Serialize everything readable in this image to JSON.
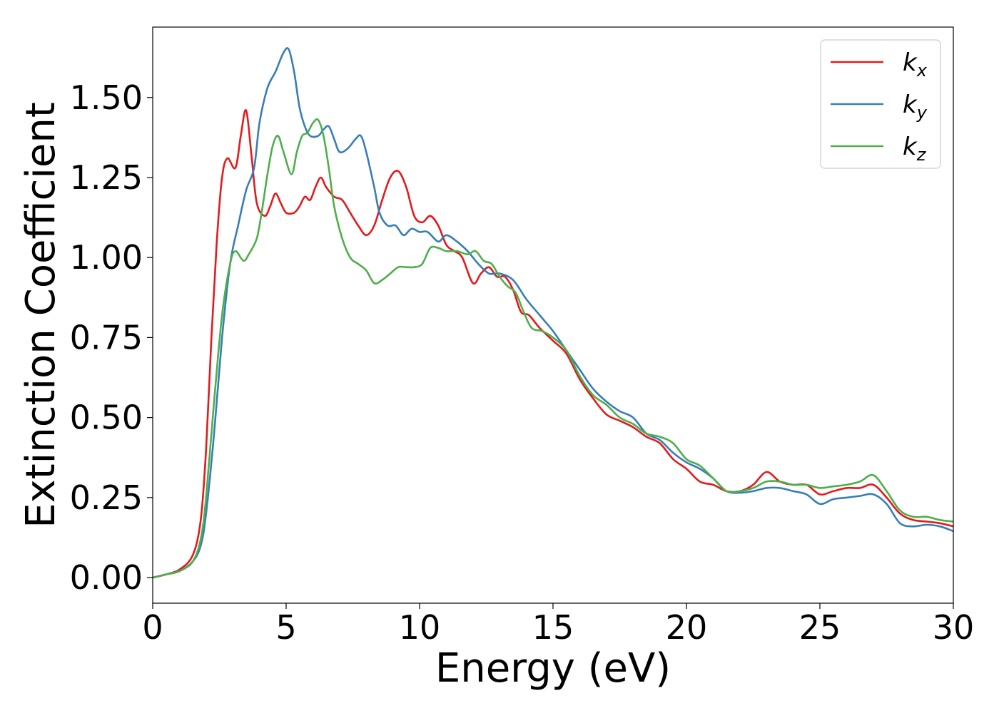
{
  "chart_data": {
    "type": "line",
    "title": "",
    "xlabel": "Energy (eV)",
    "ylabel": "Extinction Coefficient",
    "xlim": [
      0,
      30
    ],
    "ylim": [
      -0.08,
      1.72
    ],
    "xticks": [
      0,
      5,
      10,
      15,
      20,
      25,
      30
    ],
    "xtick_labels": [
      "0",
      "5",
      "10",
      "15",
      "20",
      "25",
      "30"
    ],
    "yticks": [
      0.0,
      0.25,
      0.5,
      0.75,
      1.0,
      1.25,
      1.5
    ],
    "ytick_labels": [
      "0.00",
      "0.25",
      "0.50",
      "0.75",
      "1.00",
      "1.25",
      "1.50"
    ],
    "grid": false,
    "legend_position": "top-right",
    "series": [
      {
        "name": "k_x",
        "label_main": "k",
        "label_sub": "x",
        "color": "#e41a1c",
        "points": [
          [
            0,
            0
          ],
          [
            0.5,
            0.01
          ],
          [
            1.0,
            0.025
          ],
          [
            1.5,
            0.07
          ],
          [
            1.8,
            0.18
          ],
          [
            2.0,
            0.4
          ],
          [
            2.2,
            0.75
          ],
          [
            2.4,
            1.05
          ],
          [
            2.6,
            1.25
          ],
          [
            2.8,
            1.31
          ],
          [
            3.1,
            1.28
          ],
          [
            3.3,
            1.38
          ],
          [
            3.5,
            1.46
          ],
          [
            3.7,
            1.32
          ],
          [
            3.9,
            1.17
          ],
          [
            4.2,
            1.13
          ],
          [
            4.4,
            1.16
          ],
          [
            4.6,
            1.2
          ],
          [
            4.8,
            1.17
          ],
          [
            5.0,
            1.14
          ],
          [
            5.3,
            1.14
          ],
          [
            5.5,
            1.16
          ],
          [
            5.7,
            1.19
          ],
          [
            5.9,
            1.18
          ],
          [
            6.1,
            1.22
          ],
          [
            6.3,
            1.25
          ],
          [
            6.5,
            1.22
          ],
          [
            6.8,
            1.19
          ],
          [
            7.1,
            1.18
          ],
          [
            7.4,
            1.14
          ],
          [
            7.7,
            1.1
          ],
          [
            8.0,
            1.07
          ],
          [
            8.3,
            1.1
          ],
          [
            8.6,
            1.18
          ],
          [
            8.9,
            1.25
          ],
          [
            9.2,
            1.27
          ],
          [
            9.5,
            1.22
          ],
          [
            9.8,
            1.13
          ],
          [
            10.1,
            1.11
          ],
          [
            10.4,
            1.13
          ],
          [
            10.7,
            1.1
          ],
          [
            11.0,
            1.04
          ],
          [
            11.3,
            1.02
          ],
          [
            11.6,
            1.0
          ],
          [
            12.0,
            0.92
          ],
          [
            12.3,
            0.95
          ],
          [
            12.6,
            0.97
          ],
          [
            12.9,
            0.94
          ],
          [
            13.2,
            0.94
          ],
          [
            13.5,
            0.9
          ],
          [
            13.8,
            0.83
          ],
          [
            14.1,
            0.82
          ],
          [
            14.5,
            0.78
          ],
          [
            15.0,
            0.74
          ],
          [
            15.5,
            0.7
          ],
          [
            16.0,
            0.62
          ],
          [
            16.5,
            0.56
          ],
          [
            17.0,
            0.51
          ],
          [
            17.5,
            0.49
          ],
          [
            18.0,
            0.47
          ],
          [
            18.5,
            0.44
          ],
          [
            19.0,
            0.42
          ],
          [
            19.5,
            0.37
          ],
          [
            20.0,
            0.34
          ],
          [
            20.5,
            0.3
          ],
          [
            21.0,
            0.29
          ],
          [
            21.5,
            0.27
          ],
          [
            22.0,
            0.27
          ],
          [
            22.5,
            0.29
          ],
          [
            23.0,
            0.33
          ],
          [
            23.5,
            0.3
          ],
          [
            24.0,
            0.29
          ],
          [
            24.5,
            0.29
          ],
          [
            25.0,
            0.26
          ],
          [
            25.5,
            0.27
          ],
          [
            26.0,
            0.28
          ],
          [
            26.5,
            0.28
          ],
          [
            27.0,
            0.29
          ],
          [
            27.5,
            0.25
          ],
          [
            28.0,
            0.2
          ],
          [
            28.5,
            0.18
          ],
          [
            29.0,
            0.175
          ],
          [
            29.5,
            0.17
          ],
          [
            30.0,
            0.16
          ]
        ]
      },
      {
        "name": "k_y",
        "label_main": "k",
        "label_sub": "y",
        "color": "#377eb8",
        "points": [
          [
            0,
            0
          ],
          [
            0.5,
            0.01
          ],
          [
            1.0,
            0.02
          ],
          [
            1.5,
            0.05
          ],
          [
            1.8,
            0.1
          ],
          [
            2.0,
            0.2
          ],
          [
            2.3,
            0.45
          ],
          [
            2.6,
            0.75
          ],
          [
            2.9,
            0.98
          ],
          [
            3.2,
            1.1
          ],
          [
            3.5,
            1.21
          ],
          [
            3.8,
            1.28
          ],
          [
            4.0,
            1.42
          ],
          [
            4.3,
            1.53
          ],
          [
            4.6,
            1.58
          ],
          [
            4.9,
            1.64
          ],
          [
            5.1,
            1.65
          ],
          [
            5.3,
            1.58
          ],
          [
            5.5,
            1.47
          ],
          [
            5.7,
            1.41
          ],
          [
            5.9,
            1.38
          ],
          [
            6.2,
            1.38
          ],
          [
            6.4,
            1.4
          ],
          [
            6.6,
            1.41
          ],
          [
            6.8,
            1.37
          ],
          [
            7.0,
            1.33
          ],
          [
            7.3,
            1.34
          ],
          [
            7.6,
            1.37
          ],
          [
            7.8,
            1.38
          ],
          [
            8.0,
            1.33
          ],
          [
            8.3,
            1.22
          ],
          [
            8.5,
            1.14
          ],
          [
            8.8,
            1.1
          ],
          [
            9.1,
            1.1
          ],
          [
            9.4,
            1.07
          ],
          [
            9.7,
            1.09
          ],
          [
            10.0,
            1.08
          ],
          [
            10.3,
            1.08
          ],
          [
            10.7,
            1.05
          ],
          [
            11.0,
            1.07
          ],
          [
            11.4,
            1.05
          ],
          [
            11.8,
            1.02
          ],
          [
            12.2,
            0.98
          ],
          [
            12.6,
            0.95
          ],
          [
            13.0,
            0.95
          ],
          [
            13.5,
            0.93
          ],
          [
            14.0,
            0.87
          ],
          [
            14.5,
            0.82
          ],
          [
            15.0,
            0.77
          ],
          [
            15.5,
            0.71
          ],
          [
            16.0,
            0.65
          ],
          [
            16.5,
            0.59
          ],
          [
            17.0,
            0.55
          ],
          [
            17.5,
            0.52
          ],
          [
            18.0,
            0.5
          ],
          [
            18.5,
            0.45
          ],
          [
            19.0,
            0.43
          ],
          [
            19.5,
            0.39
          ],
          [
            20.0,
            0.36
          ],
          [
            20.5,
            0.34
          ],
          [
            21.0,
            0.31
          ],
          [
            21.5,
            0.27
          ],
          [
            22.0,
            0.265
          ],
          [
            22.5,
            0.27
          ],
          [
            23.0,
            0.28
          ],
          [
            23.5,
            0.28
          ],
          [
            24.0,
            0.27
          ],
          [
            24.5,
            0.26
          ],
          [
            25.0,
            0.23
          ],
          [
            25.5,
            0.245
          ],
          [
            26.0,
            0.25
          ],
          [
            26.5,
            0.255
          ],
          [
            27.0,
            0.26
          ],
          [
            27.5,
            0.23
          ],
          [
            28.0,
            0.17
          ],
          [
            28.5,
            0.16
          ],
          [
            29.0,
            0.165
          ],
          [
            29.5,
            0.16
          ],
          [
            30.0,
            0.145
          ]
        ]
      },
      {
        "name": "k_z",
        "label_main": "k",
        "label_sub": "z",
        "color": "#4daf4a",
        "points": [
          [
            0,
            0
          ],
          [
            0.5,
            0.01
          ],
          [
            1.0,
            0.02
          ],
          [
            1.5,
            0.05
          ],
          [
            1.8,
            0.12
          ],
          [
            2.0,
            0.25
          ],
          [
            2.3,
            0.55
          ],
          [
            2.6,
            0.82
          ],
          [
            2.9,
            0.98
          ],
          [
            3.1,
            1.02
          ],
          [
            3.4,
            0.99
          ],
          [
            3.6,
            1.01
          ],
          [
            3.9,
            1.06
          ],
          [
            4.1,
            1.15
          ],
          [
            4.3,
            1.26
          ],
          [
            4.5,
            1.35
          ],
          [
            4.7,
            1.38
          ],
          [
            4.9,
            1.33
          ],
          [
            5.2,
            1.26
          ],
          [
            5.4,
            1.33
          ],
          [
            5.6,
            1.38
          ],
          [
            5.8,
            1.39
          ],
          [
            6.0,
            1.42
          ],
          [
            6.2,
            1.43
          ],
          [
            6.4,
            1.38
          ],
          [
            6.6,
            1.28
          ],
          [
            6.8,
            1.16
          ],
          [
            7.1,
            1.06
          ],
          [
            7.4,
            1.0
          ],
          [
            7.7,
            0.98
          ],
          [
            8.0,
            0.96
          ],
          [
            8.3,
            0.92
          ],
          [
            8.6,
            0.93
          ],
          [
            8.9,
            0.95
          ],
          [
            9.2,
            0.97
          ],
          [
            9.5,
            0.97
          ],
          [
            9.8,
            0.97
          ],
          [
            10.1,
            0.98
          ],
          [
            10.4,
            1.03
          ],
          [
            10.7,
            1.03
          ],
          [
            11.0,
            1.02
          ],
          [
            11.4,
            1.02
          ],
          [
            11.8,
            1.01
          ],
          [
            12.1,
            1.02
          ],
          [
            12.4,
            0.99
          ],
          [
            12.7,
            0.98
          ],
          [
            13.0,
            0.94
          ],
          [
            13.3,
            0.91
          ],
          [
            13.6,
            0.89
          ],
          [
            13.9,
            0.83
          ],
          [
            14.2,
            0.78
          ],
          [
            14.6,
            0.77
          ],
          [
            15.0,
            0.75
          ],
          [
            15.5,
            0.71
          ],
          [
            16.0,
            0.63
          ],
          [
            16.5,
            0.57
          ],
          [
            17.0,
            0.54
          ],
          [
            17.5,
            0.5
          ],
          [
            18.0,
            0.48
          ],
          [
            18.5,
            0.45
          ],
          [
            19.0,
            0.44
          ],
          [
            19.5,
            0.42
          ],
          [
            20.0,
            0.37
          ],
          [
            20.5,
            0.35
          ],
          [
            21.0,
            0.31
          ],
          [
            21.5,
            0.27
          ],
          [
            22.0,
            0.27
          ],
          [
            22.5,
            0.28
          ],
          [
            23.0,
            0.3
          ],
          [
            23.5,
            0.3
          ],
          [
            24.0,
            0.29
          ],
          [
            24.5,
            0.29
          ],
          [
            25.0,
            0.28
          ],
          [
            25.5,
            0.285
          ],
          [
            26.0,
            0.29
          ],
          [
            26.5,
            0.3
          ],
          [
            27.0,
            0.32
          ],
          [
            27.5,
            0.27
          ],
          [
            28.0,
            0.21
          ],
          [
            28.5,
            0.19
          ],
          [
            29.0,
            0.19
          ],
          [
            29.5,
            0.18
          ],
          [
            30.0,
            0.175
          ]
        ]
      }
    ]
  }
}
